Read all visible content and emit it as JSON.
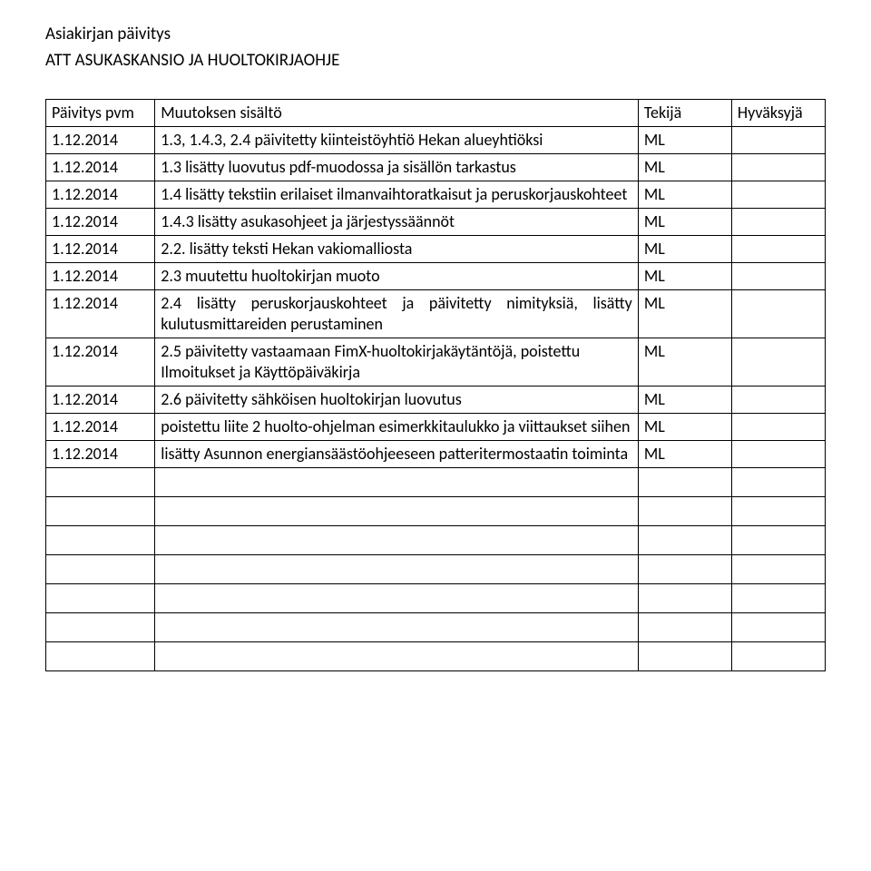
{
  "title_lines": [
    "Asiakirjan päivitys",
    "",
    "ATT ASUKASKANSIO JA HUOLTOKIRJAOHJE"
  ],
  "headers": {
    "date": "Päivitys pvm",
    "desc": "Muutoksen sisältö",
    "author": "Tekijä",
    "approver": "Hyväksyjä"
  },
  "rows": [
    {
      "date": "1.12.2014",
      "desc": "1.3, 1.4.3, 2.4 päivitetty kiinteistöyhtiö Hekan alueyhtiöksi",
      "author": "ML",
      "approver": ""
    },
    {
      "date": "1.12.2014",
      "desc": "1.3 lisätty luovutus pdf-muodossa ja sisällön tarkastus",
      "author": "ML",
      "approver": ""
    },
    {
      "date": "1.12.2014",
      "desc": "1.4 lisätty tekstiin erilaiset ilmanvaihtoratkaisut ja peruskorjauskohteet",
      "author": "ML",
      "approver": ""
    },
    {
      "date": "1.12.2014",
      "desc": "1.4.3 lisätty asukasohjeet ja järjestyssäännöt",
      "author": "ML",
      "approver": ""
    },
    {
      "date": "1.12.2014",
      "desc": "2.2. lisätty teksti Hekan vakiomalliosta",
      "author": "ML",
      "approver": ""
    },
    {
      "date": "1.12.2014",
      "desc": "2.3 muutettu huoltokirjan muoto",
      "author": "ML",
      "approver": ""
    },
    {
      "date": "1.12.2014",
      "desc": "2.4 lisätty peruskorjauskohteet ja päivitetty nimityksiä, lisätty kulutusmittareiden perustaminen",
      "author": "ML",
      "approver": "",
      "justify": true
    },
    {
      "date": "1.12.2014",
      "desc": "2.5 päivitetty vastaamaan FimX-huoltokirjakäytäntöjä, poistettu Ilmoitukset ja Käyttöpäiväkirja",
      "author": "ML",
      "approver": ""
    },
    {
      "date": "1.12.2014",
      "desc": "2.6 päivitetty sähköisen huoltokirjan luovutus",
      "author": "ML",
      "approver": ""
    },
    {
      "date": "1.12.2014",
      "desc": "poistettu liite 2 huolto-ohjelman esimerkkitaulukko ja viittaukset siihen",
      "author": "ML",
      "approver": ""
    },
    {
      "date": "1.12.2014",
      "desc": "lisätty Asunnon energiansäästöohjeeseen patteritermostaatin toiminta",
      "author": "ML",
      "approver": ""
    }
  ],
  "empty_row_count": 7
}
